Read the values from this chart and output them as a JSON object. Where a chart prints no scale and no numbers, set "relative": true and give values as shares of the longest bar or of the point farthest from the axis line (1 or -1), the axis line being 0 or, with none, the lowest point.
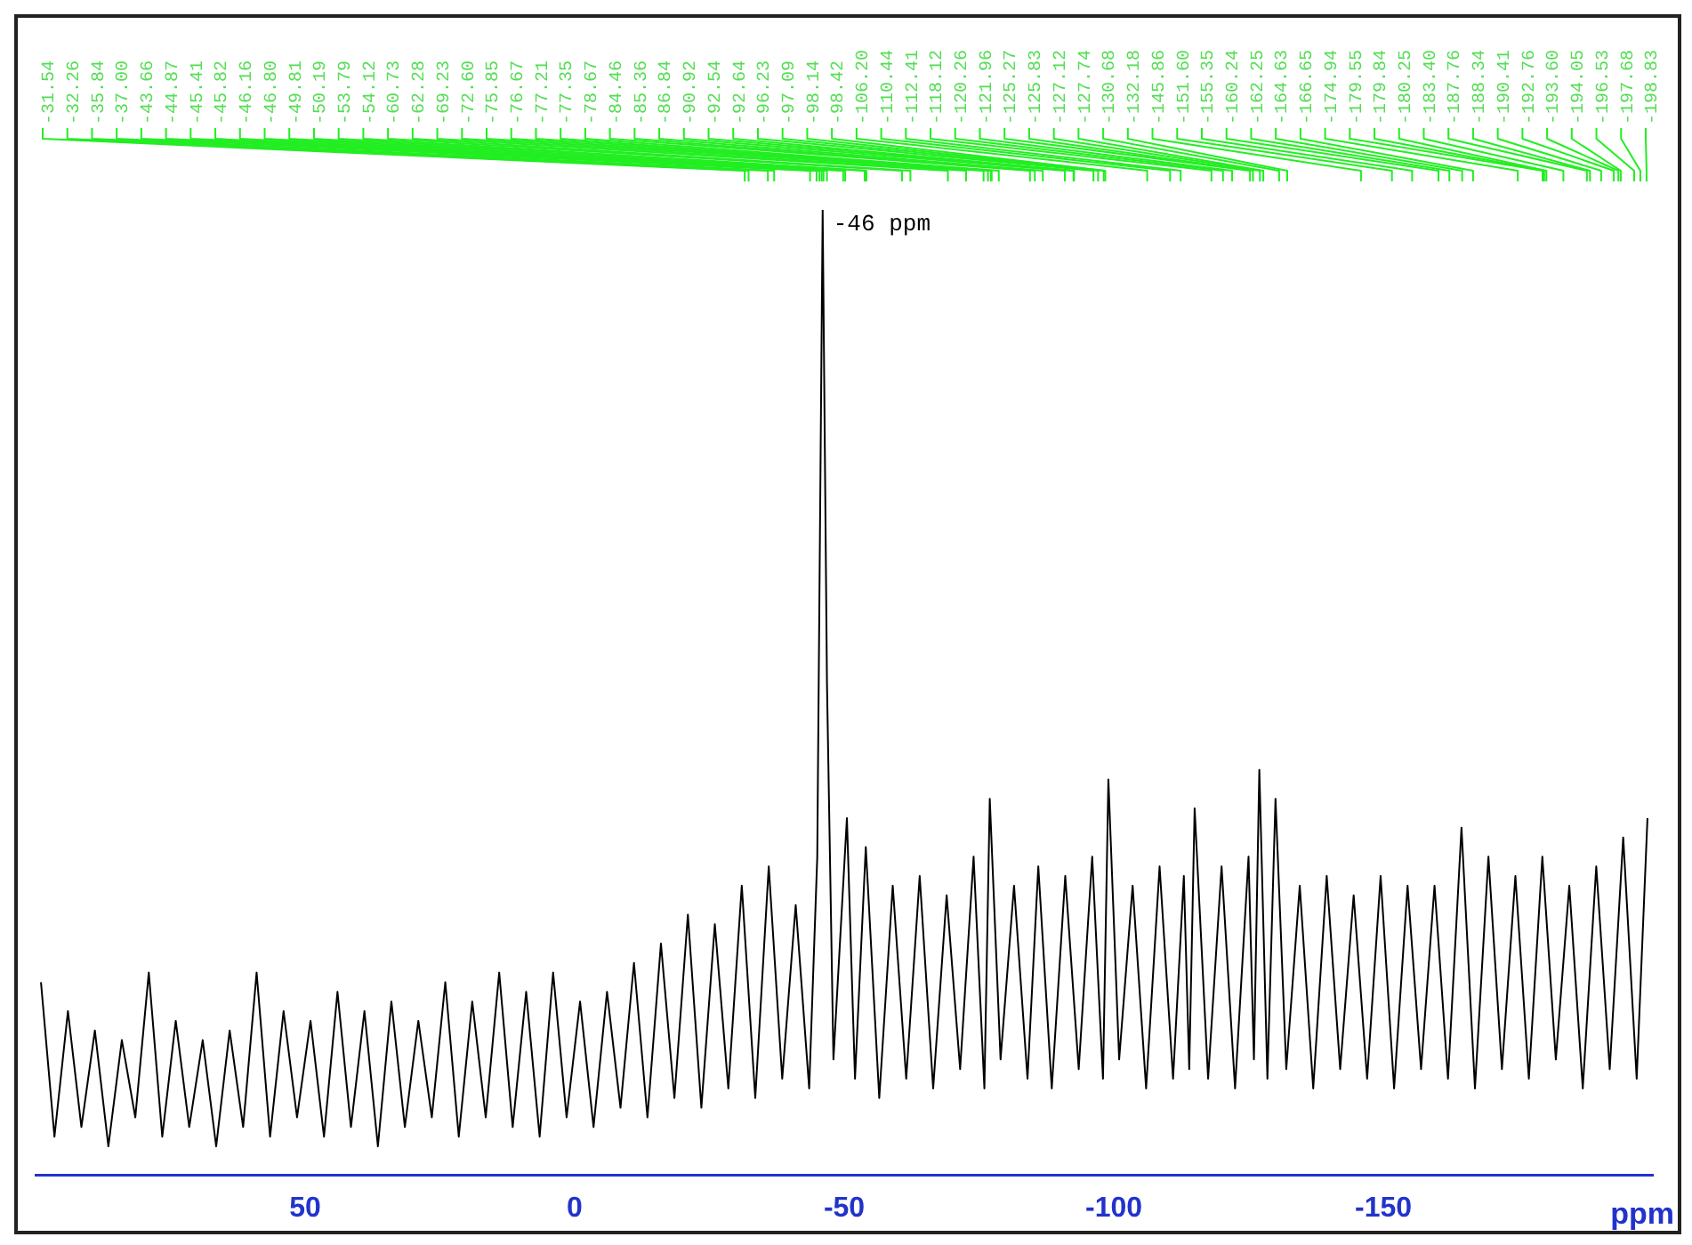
{
  "chart_data": {
    "type": "line",
    "relative": true,
    "xlabel": "ppm",
    "xlim": [
      100,
      -200
    ],
    "xticks": [
      50,
      0,
      -50,
      -100,
      -150
    ],
    "legend": false,
    "marker": "none",
    "series": [
      {
        "color": "#000000",
        "x": [
          99,
          96.5,
          94,
          91.5,
          89,
          86.5,
          84,
          81.5,
          79,
          76.5,
          74,
          71.5,
          69,
          66.5,
          64,
          61.5,
          59,
          56.5,
          54,
          51.5,
          49,
          46.5,
          44,
          41.5,
          39,
          36.5,
          34,
          31.5,
          29,
          26.5,
          24,
          21.5,
          19,
          16.5,
          14,
          11.5,
          9,
          6.5,
          4,
          1.5,
          -1,
          -3.5,
          -6,
          -8.5,
          -11,
          -13.5,
          -16,
          -18.5,
          -21,
          -23.5,
          -26,
          -28.5,
          -31,
          -33.5,
          -36,
          -38.5,
          -41,
          -43.5,
          -45,
          -46,
          -46.8,
          -48,
          -50.5,
          -52,
          -54,
          -56.5,
          -59,
          -61.5,
          -64,
          -66.5,
          -69,
          -71.5,
          -74,
          -76,
          -77,
          -79,
          -81.5,
          -84,
          -86,
          -88.5,
          -91,
          -93.5,
          -96,
          -98,
          -99,
          -101,
          -103.5,
          -106,
          -108.5,
          -111,
          -113,
          -114,
          -115,
          -117.5,
          -120,
          -122.5,
          -125,
          -126,
          -127,
          -128.5,
          -130,
          -132,
          -134.5,
          -137,
          -139.5,
          -142,
          -144.5,
          -147,
          -149.5,
          -152,
          -154.5,
          -157,
          -159.5,
          -162,
          -164.5,
          -167,
          -169.5,
          -172,
          -174.5,
          -177,
          -179.5,
          -182,
          -184.5,
          -187,
          -189.5,
          -192,
          -194.5,
          -197,
          -199
        ],
        "values": [
          0.2,
          0.04,
          0.17,
          0.05,
          0.15,
          0.03,
          0.14,
          0.06,
          0.21,
          0.04,
          0.16,
          0.05,
          0.14,
          0.03,
          0.15,
          0.05,
          0.21,
          0.04,
          0.17,
          0.06,
          0.16,
          0.04,
          0.19,
          0.05,
          0.17,
          0.03,
          0.18,
          0.05,
          0.16,
          0.06,
          0.2,
          0.04,
          0.18,
          0.06,
          0.21,
          0.05,
          0.19,
          0.04,
          0.21,
          0.06,
          0.18,
          0.05,
          0.19,
          0.07,
          0.22,
          0.06,
          0.24,
          0.08,
          0.27,
          0.07,
          0.26,
          0.09,
          0.3,
          0.08,
          0.32,
          0.1,
          0.28,
          0.09,
          0.33,
          1,
          0.51,
          0.12,
          0.37,
          0.1,
          0.34,
          0.08,
          0.3,
          0.1,
          0.31,
          0.09,
          0.29,
          0.11,
          0.33,
          0.09,
          0.39,
          0.12,
          0.3,
          0.1,
          0.32,
          0.09,
          0.31,
          0.11,
          0.33,
          0.1,
          0.41,
          0.12,
          0.3,
          0.09,
          0.32,
          0.1,
          0.31,
          0.11,
          0.38,
          0.1,
          0.32,
          0.09,
          0.33,
          0.12,
          0.42,
          0.1,
          0.39,
          0.11,
          0.3,
          0.09,
          0.31,
          0.11,
          0.29,
          0.1,
          0.31,
          0.09,
          0.3,
          0.11,
          0.3,
          0.1,
          0.36,
          0.09,
          0.33,
          0.11,
          0.31,
          0.1,
          0.33,
          0.12,
          0.3,
          0.09,
          0.32,
          0.11,
          0.35,
          0.1,
          0.37
        ]
      }
    ],
    "annotations": [
      {
        "text": "-46 ppm",
        "x": -46,
        "y": 1
      },
      "-31.54",
      "-32.26",
      "-35.84",
      "-37.00",
      "-43.66",
      "-44.87",
      "-45.41",
      "-45.82",
      "-46.16",
      "-46.80",
      "-49.81",
      "-50.19",
      "-53.79",
      "-54.12",
      "-60.73",
      "-62.28",
      "-69.23",
      "-72.60",
      "-75.85",
      "-76.67",
      "-77.21",
      "-77.35",
      "-78.67",
      "-84.46",
      "-85.36",
      "-86.84",
      "-90.92",
      "-92.54",
      "-92.64",
      "-96.23",
      "-97.09",
      "-98.14",
      "-98.42",
      "-106.20",
      "-110.44",
      "-112.41",
      "-118.12",
      "-120.26",
      "-121.96",
      "-125.27",
      "-125.83",
      "-127.12",
      "-127.74",
      "-130.68",
      "-132.18",
      "-145.86",
      "-151.60",
      "-155.35",
      "-160.24",
      "-162.25",
      "-164.63",
      "-166.65",
      "-174.94",
      "-179.55",
      "-179.84",
      "-180.25",
      "-183.40",
      "-187.76",
      "-188.34",
      "-190.41",
      "-192.76",
      "-193.60",
      "-194.05",
      "-196.53",
      "-197.68",
      "-198.83"
    ]
  }
}
